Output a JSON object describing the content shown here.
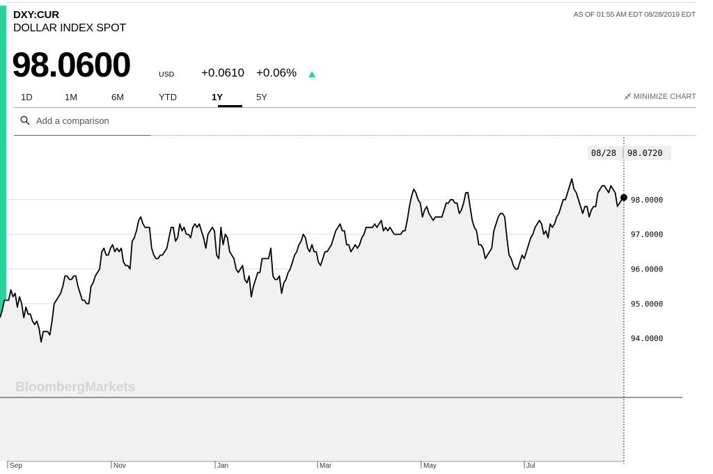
{
  "header": {
    "ticker": "DXY:CUR",
    "name": "DOLLAR INDEX SPOT",
    "as_of": "AS OF 01:55 AM EDT 08/28/2019 EDT",
    "price": "98.0600",
    "currency": "USD",
    "change": "+0.0610",
    "change_pct": "+0.06%"
  },
  "tabs": [
    {
      "label": "1D",
      "active": false
    },
    {
      "label": "1M",
      "active": false
    },
    {
      "label": "6M",
      "active": false
    },
    {
      "label": "YTD",
      "active": false
    },
    {
      "label": "1Y",
      "active": true
    },
    {
      "label": "5Y",
      "active": false
    }
  ],
  "minimize_label": "MINIMIZE CHART",
  "search": {
    "placeholder": "Add a comparison"
  },
  "watermark": "BloombergMarkets",
  "colors": {
    "accent": "#2bd19a",
    "line": "#000000",
    "area": "#f1f1f1"
  },
  "icons": {
    "search": "search-icon",
    "minimize": "minimize-icon",
    "trend": "up-arrow-icon"
  },
  "chart_data": {
    "type": "area",
    "y_ticks": [
      "94.0000",
      "95.0000",
      "96.0000",
      "97.0000",
      "98.0000"
    ],
    "ylim": [
      92.3,
      99.8
    ],
    "x_labels": [
      "Sep",
      "Nov",
      "Jan",
      "Mar",
      "May",
      "Jul"
    ],
    "tooltip": {
      "date": "08/28",
      "value": "98.0720"
    },
    "grid": true,
    "values": [
      94.6,
      94.8,
      95.1,
      95.1,
      95.1,
      95.4,
      95.2,
      95.3,
      94.9,
      95.2,
      95.0,
      94.6,
      94.9,
      94.7,
      94.7,
      94.5,
      94.4,
      94.5,
      94.3,
      93.9,
      94.2,
      94.2,
      94.2,
      94.1,
      94.5,
      95.0,
      95.1,
      95.2,
      95.3,
      95.5,
      95.8,
      95.8,
      95.7,
      95.7,
      95.8,
      95.8,
      95.5,
      95.3,
      95.1,
      95.1,
      95.0,
      95.0,
      95.5,
      95.6,
      95.8,
      95.9,
      96.0,
      96.5,
      96.6,
      96.4,
      96.4,
      96.6,
      96.7,
      96.5,
      96.6,
      96.5,
      96.6,
      96.2,
      96.1,
      96.1,
      96.0,
      96.8,
      96.9,
      97.1,
      97.4,
      97.5,
      97.3,
      97.2,
      97.2,
      97.2,
      96.6,
      96.4,
      96.3,
      96.3,
      96.4,
      96.4,
      96.5,
      96.6,
      96.9,
      97.2,
      97.2,
      96.8,
      96.9,
      97.3,
      97.1,
      97.2,
      97.0,
      97.0,
      96.9,
      97.2,
      97.3,
      97.2,
      97.3,
      97.1,
      96.9,
      96.6,
      97.0,
      97.1,
      97.2,
      97.1,
      96.4,
      96.3,
      97.2,
      96.7,
      97.0,
      96.9,
      96.5,
      96.4,
      96.3,
      96.0,
      95.9,
      96.0,
      96.1,
      95.7,
      95.6,
      95.8,
      95.2,
      95.5,
      95.7,
      95.9,
      95.9,
      96.3,
      96.3,
      96.3,
      96.3,
      96.6,
      95.8,
      95.7,
      95.7,
      95.8,
      95.3,
      95.6,
      95.7,
      95.9,
      96.0,
      96.2,
      96.4,
      96.5,
      96.7,
      96.8,
      97.0,
      96.9,
      96.6,
      96.5,
      96.7,
      96.5,
      96.5,
      96.2,
      96.1,
      96.3,
      96.5,
      96.5,
      96.6,
      96.7,
      96.9,
      97.1,
      97.2,
      97.3,
      97.1,
      97.1,
      96.7,
      96.7,
      96.5,
      96.6,
      96.7,
      96.6,
      96.7,
      96.9,
      97.0,
      97.2,
      97.2,
      97.2,
      97.2,
      97.3,
      97.2,
      97.3,
      97.4,
      97.1,
      97.2,
      97.1,
      97.2,
      97.1,
      97.0,
      97.0,
      97.0,
      97.0,
      97.1,
      97.1,
      97.4,
      97.8,
      98.1,
      98.3,
      98.2,
      98.0,
      97.9,
      97.5,
      97.7,
      97.8,
      97.6,
      97.5,
      97.4,
      97.5,
      97.5,
      97.5,
      97.5,
      97.7,
      97.9,
      97.9,
      98.0,
      98.0,
      97.9,
      97.9,
      97.6,
      97.7,
      97.9,
      98.2,
      98.2,
      97.8,
      97.4,
      97.2,
      97.1,
      96.7,
      96.7,
      96.6,
      96.3,
      96.4,
      96.5,
      96.6,
      97.1,
      97.3,
      97.5,
      97.6,
      97.6,
      97.5,
      96.9,
      96.4,
      96.3,
      96.1,
      96.0,
      96.0,
      96.2,
      96.4,
      96.3,
      96.5,
      96.7,
      96.9,
      97.0,
      97.2,
      97.3,
      97.4,
      97.3,
      97.0,
      97.1,
      96.9,
      97.3,
      97.2,
      97.3,
      97.5,
      97.6,
      97.8,
      98.0,
      98.0,
      98.2,
      98.4,
      98.6,
      98.3,
      98.2,
      98.0,
      97.8,
      97.6,
      97.8,
      97.8,
      97.5,
      97.7,
      97.8,
      97.8,
      98.2,
      98.3,
      98.4,
      98.4,
      98.3,
      98.2,
      98.4,
      98.3,
      98.2,
      97.8,
      97.9,
      98.0,
      98.06
    ]
  }
}
